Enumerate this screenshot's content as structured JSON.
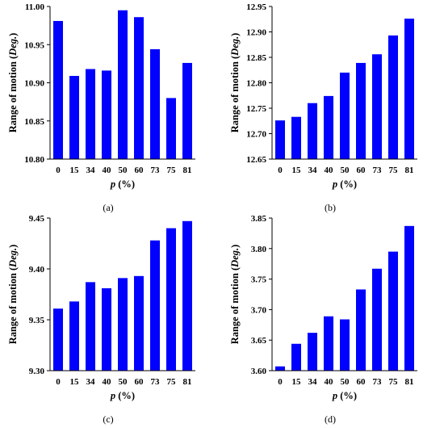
{
  "figure": {
    "bar_color": "#0000FF",
    "axis_color": "#000000"
  },
  "chart_data": [
    {
      "type": "bar",
      "label": "(a)",
      "categories": [
        "0",
        "15",
        "34",
        "40",
        "50",
        "60",
        "73",
        "75",
        "81"
      ],
      "values": [
        10.981,
        10.909,
        10.918,
        10.916,
        10.995,
        10.986,
        10.944,
        10.88,
        10.926
      ],
      "ylim": [
        10.8,
        11.0
      ],
      "yticks": [
        "10.80",
        "10.85",
        "10.90",
        "10.95",
        "11.00"
      ],
      "ylabel": "Range of motion (Deg.)",
      "xlabel": "p (%)",
      "grid": false
    },
    {
      "type": "bar",
      "label": "(b)",
      "categories": [
        "0",
        "15",
        "34",
        "40",
        "50",
        "60",
        "73",
        "75",
        "81"
      ],
      "values": [
        12.726,
        12.733,
        12.76,
        12.774,
        12.82,
        12.839,
        12.856,
        12.893,
        12.926
      ],
      "ylim": [
        12.65,
        12.95
      ],
      "yticks": [
        "12.65",
        "12.70",
        "12.75",
        "12.80",
        "12.85",
        "12.90",
        "12.95"
      ],
      "ylabel": "Range of motion (Deg.)",
      "xlabel": "p (%)",
      "grid": false
    },
    {
      "type": "bar",
      "label": "(c)",
      "categories": [
        "0",
        "15",
        "34",
        "40",
        "50",
        "60",
        "73",
        "75",
        "81"
      ],
      "values": [
        9.361,
        9.368,
        9.387,
        9.381,
        9.391,
        9.393,
        9.428,
        9.44,
        9.447
      ],
      "ylim": [
        9.3,
        9.45
      ],
      "yticks": [
        "9.30",
        "9.35",
        "9.40",
        "9.45"
      ],
      "ylabel": "Range of motion (Deg.)",
      "xlabel": "p (%)",
      "grid": false
    },
    {
      "type": "bar",
      "label": "(d)",
      "categories": [
        "0",
        "15",
        "34",
        "40",
        "50",
        "60",
        "73",
        "75",
        "81"
      ],
      "values": [
        3.607,
        3.644,
        3.662,
        3.689,
        3.684,
        3.733,
        3.767,
        3.795,
        3.837
      ],
      "ylim": [
        3.6,
        3.85
      ],
      "yticks": [
        "3.60",
        "3.65",
        "3.70",
        "3.75",
        "3.80",
        "3.85"
      ],
      "ylabel": "Range of motion (Deg.)",
      "xlabel": "p (%)",
      "grid": false
    }
  ]
}
